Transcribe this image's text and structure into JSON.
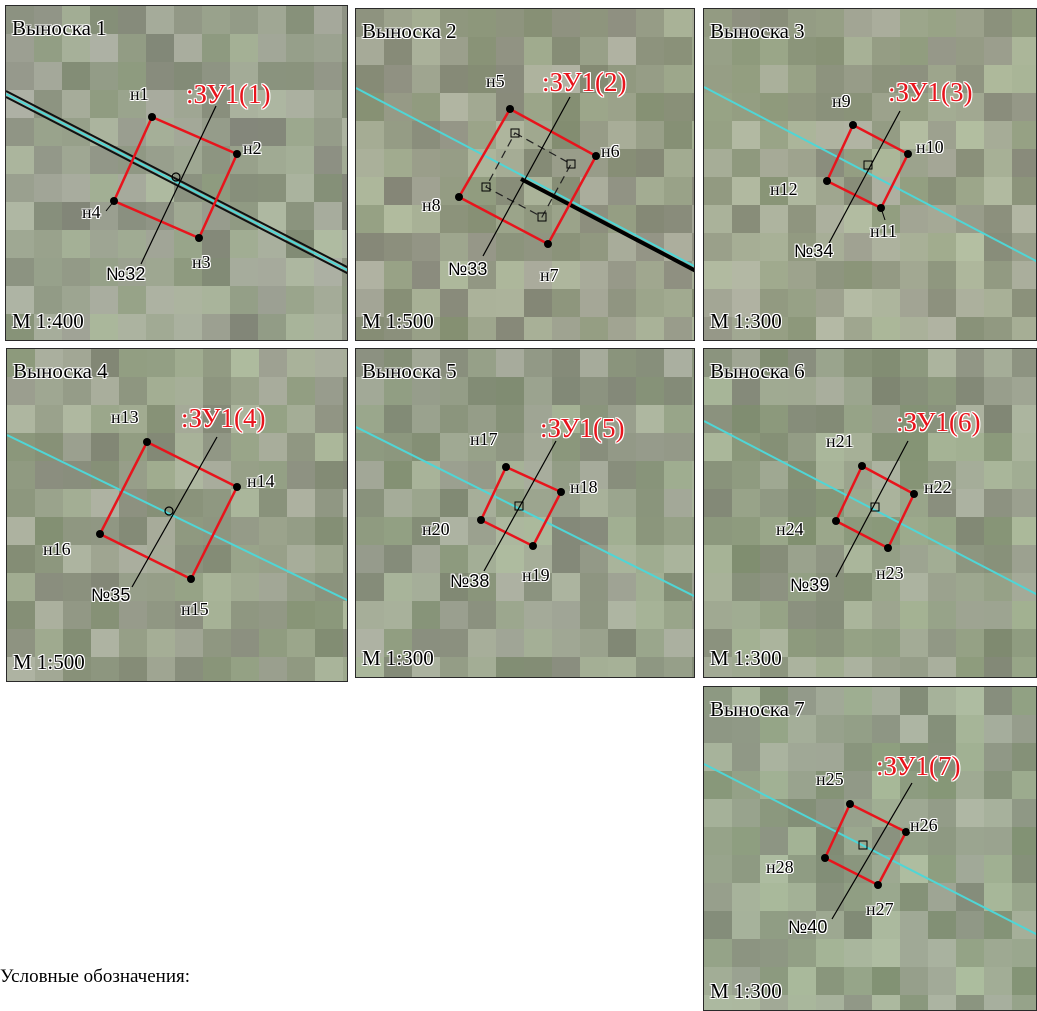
{
  "colors": {
    "boundary": "#e8141c",
    "guide_line": "#4fd6d6",
    "label_red": "#e8141c"
  },
  "callouts": [
    {
      "title": "Выноска 1",
      "scale": "М 1:400",
      "parcel": ":ЗУ1(1)",
      "number": "№32",
      "points": [
        "н1",
        "н2",
        "н3",
        "н4"
      ]
    },
    {
      "title": "Выноска 2",
      "scale": "М 1:500",
      "parcel": ":ЗУ1(2)",
      "number": "№33",
      "points": [
        "н5",
        "н6",
        "н7",
        "н8"
      ]
    },
    {
      "title": "Выноска 3",
      "scale": "М 1:300",
      "parcel": ":ЗУ1(3)",
      "number": "№34",
      "points": [
        "н9",
        "н10",
        "н11",
        "н12"
      ]
    },
    {
      "title": "Выноска 4",
      "scale": "М 1:500",
      "parcel": ":ЗУ1(4)",
      "number": "№35",
      "points": [
        "н13",
        "н14",
        "н15",
        "н16"
      ]
    },
    {
      "title": "Выноска 5",
      "scale": "М 1:300",
      "parcel": ":ЗУ1(5)",
      "number": "№38",
      "points": [
        "н17",
        "н18",
        "н19",
        "н20"
      ]
    },
    {
      "title": "Выноска 6",
      "scale": "М 1:300",
      "parcel": ":ЗУ1(6)",
      "number": "№39",
      "points": [
        "н21",
        "н22",
        "н23",
        "н24"
      ]
    },
    {
      "title": "Выноска 7",
      "scale": "М 1:300",
      "parcel": ":ЗУ1(7)",
      "number": "№40",
      "points": [
        "н25",
        "н26",
        "н27",
        "н28"
      ]
    }
  ],
  "legend": {
    "title": "Условные обозначения:"
  }
}
